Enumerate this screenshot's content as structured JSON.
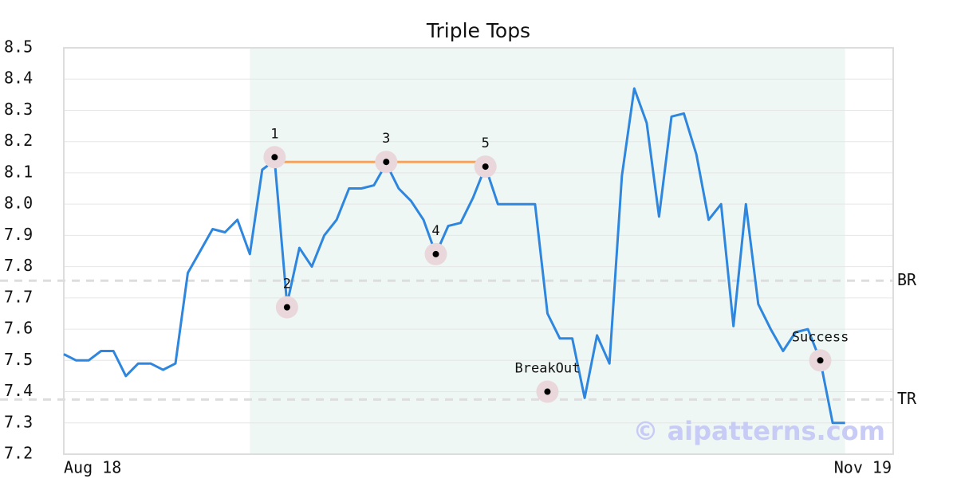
{
  "chart_data": {
    "type": "line",
    "title": "Triple Tops",
    "values": [
      7.52,
      7.5,
      7.5,
      7.53,
      7.53,
      7.45,
      7.49,
      7.49,
      7.47,
      7.49,
      7.78,
      7.85,
      7.92,
      7.91,
      7.95,
      7.84,
      8.11,
      8.14,
      7.68,
      7.86,
      7.8,
      7.9,
      7.95,
      8.05,
      8.05,
      8.06,
      8.13,
      8.05,
      8.01,
      7.95,
      7.84,
      7.93,
      7.94,
      8.02,
      8.12,
      8.0,
      8.0,
      8.0,
      8.0,
      7.65,
      7.57,
      7.57,
      7.38,
      7.58,
      7.49,
      8.09,
      8.37,
      8.26,
      7.96,
      8.28,
      8.29,
      8.16,
      7.95,
      8.0,
      7.61,
      8.0,
      7.68,
      7.6,
      7.53,
      7.59,
      7.6,
      7.5,
      7.3,
      7.3
    ],
    "color": "#2e86de",
    "ylim": [
      7.2,
      8.5
    ],
    "yticks": [
      7.2,
      7.3,
      7.4,
      7.5,
      7.6,
      7.7,
      7.8,
      7.9,
      {
        "value": 8,
        "label": "8.0"
      },
      8.1,
      8.2,
      8.3,
      8.4,
      8.5
    ],
    "grid": true,
    "x_axis_labels": [
      "Aug 18",
      "Nov 19"
    ],
    "pattern_region": {
      "start": 15,
      "end": 63,
      "color": "#eef7f3"
    },
    "resistance": {
      "value": 8.135,
      "start": 17,
      "end": 34,
      "color": "#f4a460"
    },
    "levels": [
      {
        "label": "BR",
        "value": 7.755
      },
      {
        "label": "TR",
        "value": 7.375
      }
    ],
    "annotations": [
      {
        "label": "1",
        "index": 17,
        "value": 8.15
      },
      {
        "label": "2",
        "index": 18,
        "value": 7.67
      },
      {
        "label": "3",
        "index": 26,
        "value": 8.135
      },
      {
        "label": "4",
        "index": 30,
        "value": 7.84
      },
      {
        "label": "5",
        "index": 34,
        "value": 8.12
      },
      {
        "label": "BreakOut",
        "index": 39,
        "value": 7.4
      },
      {
        "label": "Success",
        "index": 61,
        "value": 7.5
      }
    ],
    "watermark": "© aipatterns.com"
  }
}
